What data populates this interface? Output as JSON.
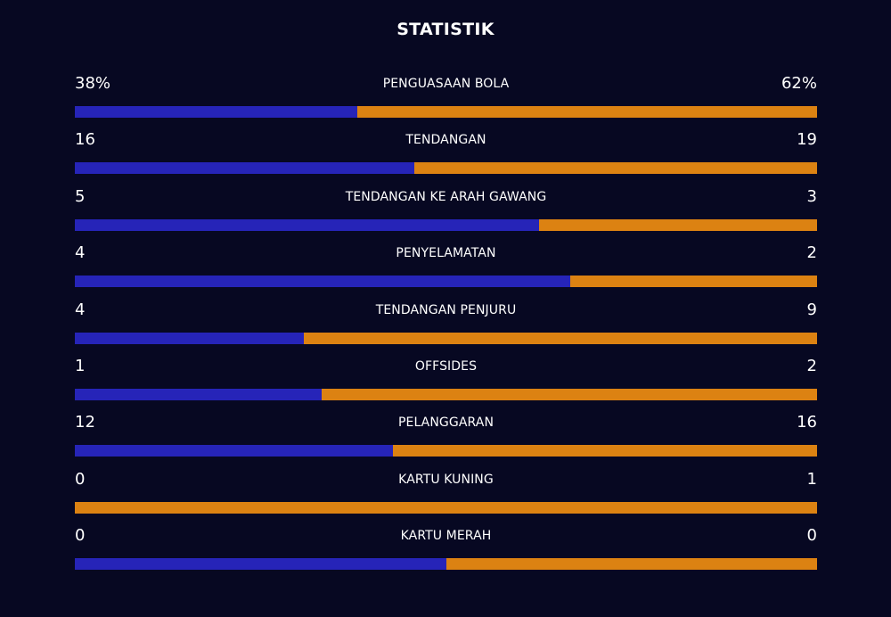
{
  "title": "STATISTIK",
  "colors": {
    "background": "#070822",
    "home": "#2624b8",
    "away": "#dc8212",
    "text": "#ffffff"
  },
  "stats": [
    {
      "label": "PENGUASAAN BOLA",
      "home": "38%",
      "away": "62%",
      "home_share": 0.38
    },
    {
      "label": "TENDANGAN",
      "home": "16",
      "away": "19",
      "home_share": 0.457
    },
    {
      "label": "TENDANGAN KE ARAH GAWANG",
      "home": "5",
      "away": "3",
      "home_share": 0.625
    },
    {
      "label": "PENYELAMATAN",
      "home": "4",
      "away": "2",
      "home_share": 0.667
    },
    {
      "label": "TENDANGAN PENJURU",
      "home": "4",
      "away": "9",
      "home_share": 0.308
    },
    {
      "label": "OFFSIDES",
      "home": "1",
      "away": "2",
      "home_share": 0.333
    },
    {
      "label": "PELANGGARAN",
      "home": "12",
      "away": "16",
      "home_share": 0.429
    },
    {
      "label": "KARTU KUNING",
      "home": "0",
      "away": "1",
      "home_share": 0.0
    },
    {
      "label": "KARTU MERAH",
      "home": "0",
      "away": "0",
      "home_share": 0.5
    }
  ]
}
